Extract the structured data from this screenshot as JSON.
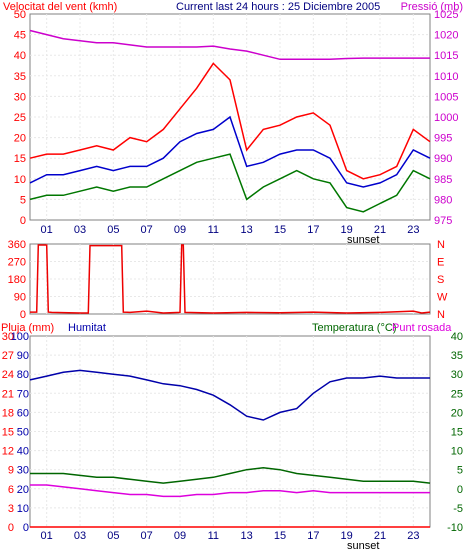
{
  "colors": {
    "wind_max": "#ff0000",
    "wind_mean": "#0000cc",
    "wind_min": "#007700",
    "pressure": "#cc00cc",
    "direction": "#ee0000",
    "humidity": "#0000aa",
    "temperature": "#006600",
    "dew_point": "#dd00dd",
    "rain": "#ff0000",
    "frame": "#808080",
    "grid": "#ffffff"
  },
  "chart_data": [
    {
      "type": "line",
      "title_left": "Velocitat del vent (kmh)",
      "title_center": "Current last 24 hours : 25 Diciembre 2005",
      "title_right": "Pressió (mb)",
      "x_ticks": [
        "01",
        "03",
        "05",
        "07",
        "09",
        "11",
        "13",
        "15",
        "17",
        "19",
        "21",
        "23"
      ],
      "x_annotation": "sunset",
      "y_left_ticks": [
        "0",
        "5",
        "10",
        "15",
        "20",
        "25",
        "30",
        "35",
        "40",
        "45",
        "50"
      ],
      "y_right_ticks": [
        "975",
        "980",
        "985",
        "990",
        "995",
        "1000",
        "1005",
        "1010",
        "1015",
        "1020",
        "1025"
      ],
      "y_left_range": [
        0,
        50
      ],
      "y_right_range": [
        975,
        1025
      ],
      "x_range": [
        0,
        24
      ],
      "series": [
        {
          "key": "pressure",
          "axis": "right",
          "x": [
            0,
            1,
            2,
            3,
            4,
            5,
            6,
            7,
            8,
            9,
            10,
            11,
            12,
            13,
            14,
            15,
            16,
            17,
            18,
            19,
            20,
            21,
            22,
            23,
            24
          ],
          "y": [
            1021,
            1020,
            1019,
            1018.5,
            1018,
            1018,
            1017.5,
            1017,
            1017,
            1017,
            1017,
            1017.2,
            1016.5,
            1016,
            1015,
            1014,
            1014,
            1014,
            1014,
            1014.2,
            1014.3,
            1014.3,
            1014.3,
            1014.3,
            1014.3
          ]
        },
        {
          "key": "wind_max",
          "axis": "left",
          "x": [
            0,
            1,
            2,
            3,
            4,
            5,
            6,
            7,
            8,
            9,
            10,
            11,
            12,
            13,
            14,
            15,
            16,
            17,
            18,
            19,
            20,
            21,
            22,
            23,
            24
          ],
          "y": [
            15,
            16,
            16,
            17,
            18,
            17,
            20,
            19,
            22,
            27,
            32,
            38,
            34,
            17,
            22,
            23,
            25,
            26,
            23,
            12,
            10,
            11,
            13,
            22,
            19
          ]
        },
        {
          "key": "wind_mean",
          "axis": "left",
          "x": [
            0,
            1,
            2,
            3,
            4,
            5,
            6,
            7,
            8,
            9,
            10,
            11,
            12,
            13,
            14,
            15,
            16,
            17,
            18,
            19,
            20,
            21,
            22,
            23,
            24
          ],
          "y": [
            9,
            11,
            11,
            12,
            13,
            12,
            13,
            13,
            15,
            19,
            21,
            22,
            25,
            13,
            14,
            16,
            17,
            17,
            15,
            9,
            8,
            9,
            11,
            17,
            15
          ]
        },
        {
          "key": "wind_min",
          "axis": "left",
          "x": [
            0,
            1,
            2,
            3,
            4,
            5,
            6,
            7,
            8,
            9,
            10,
            11,
            12,
            13,
            14,
            15,
            16,
            17,
            18,
            19,
            20,
            21,
            22,
            23,
            24
          ],
          "y": [
            5,
            6,
            6,
            7,
            8,
            7,
            8,
            8,
            10,
            12,
            14,
            15,
            16,
            5,
            8,
            10,
            12,
            10,
            9,
            3,
            2,
            4,
            6,
            12,
            10
          ]
        }
      ]
    },
    {
      "type": "line",
      "y_left_ticks": [
        "0",
        "90",
        "180",
        "270",
        "360"
      ],
      "y_right_labels": [
        "N",
        "W",
        "S",
        "E",
        "N"
      ],
      "y_range": [
        0,
        360
      ],
      "x_range": [
        0,
        24
      ],
      "series": [
        {
          "key": "direction",
          "x": [
            0,
            0.4,
            0.5,
            1.0,
            1.1,
            1.3,
            3,
            3.5,
            3.6,
            4.5,
            5.5,
            5.6,
            6,
            7,
            8,
            9,
            9.1,
            9.2,
            9.3,
            11,
            13,
            15,
            17,
            19,
            21,
            23,
            23.5,
            24
          ],
          "y": [
            10,
            10,
            355,
            355,
            10,
            8,
            5,
            5,
            352,
            352,
            352,
            10,
            8,
            15,
            5,
            8,
            355,
            355,
            8,
            5,
            8,
            6,
            10,
            5,
            8,
            15,
            5,
            10
          ]
        }
      ]
    },
    {
      "type": "line",
      "title_rain": "Pluja (mm)",
      "title_humidity": "Humitat",
      "title_temperature": "Temperatura (°C)",
      "title_dew": "Punt rosada",
      "x_ticks": [
        "01",
        "03",
        "05",
        "07",
        "09",
        "11",
        "13",
        "15",
        "17",
        "19",
        "21",
        "23"
      ],
      "x_annotation": "sunset",
      "y_left_ticks": [
        "0",
        "3",
        "6",
        "9",
        "12",
        "15",
        "18",
        "21",
        "24",
        "27",
        "30"
      ],
      "y_mid_ticks": [
        "0",
        "10",
        "20",
        "30",
        "40",
        "50",
        "60",
        "70",
        "80",
        "90",
        "100"
      ],
      "y_right_ticks": [
        "-10",
        "-5",
        "0",
        "5",
        "10",
        "15",
        "20",
        "25",
        "30",
        "35",
        "40"
      ],
      "y_left_range": [
        0,
        30
      ],
      "y_mid_range": [
        0,
        100
      ],
      "y_right_range": [
        -10,
        40
      ],
      "x_range": [
        0,
        24
      ],
      "series": [
        {
          "key": "humidity",
          "axis": "mid",
          "x": [
            0,
            1,
            2,
            3,
            4,
            5,
            6,
            7,
            8,
            9,
            10,
            11,
            12,
            13,
            14,
            15,
            16,
            17,
            18,
            19,
            20,
            21,
            22,
            23,
            24
          ],
          "y": [
            77,
            79,
            81,
            82,
            81,
            80,
            79,
            77,
            75,
            74,
            72,
            69,
            64,
            58,
            56,
            60,
            62,
            70,
            76,
            78,
            78,
            79,
            78,
            78,
            78
          ]
        },
        {
          "key": "temperature",
          "axis": "right",
          "x": [
            0,
            1,
            2,
            3,
            4,
            5,
            6,
            7,
            8,
            9,
            10,
            11,
            12,
            13,
            14,
            15,
            16,
            17,
            18,
            19,
            20,
            21,
            22,
            23,
            24
          ],
          "y": [
            4,
            4,
            4,
            3.5,
            3,
            3,
            2.5,
            2,
            1.5,
            2,
            2.5,
            3,
            4,
            5,
            5.5,
            5,
            4,
            3.5,
            3,
            2.5,
            2,
            2,
            2,
            2,
            1.5
          ]
        },
        {
          "key": "dew_point",
          "axis": "right",
          "x": [
            0,
            1,
            2,
            3,
            4,
            5,
            6,
            7,
            8,
            9,
            10,
            11,
            12,
            13,
            14,
            15,
            16,
            17,
            18,
            19,
            20,
            21,
            22,
            23,
            24
          ],
          "y": [
            1,
            1,
            0.5,
            0,
            -0.5,
            -1,
            -1.5,
            -1.5,
            -2,
            -2,
            -1.5,
            -1.5,
            -1,
            -1,
            -0.5,
            -0.5,
            -1,
            -0.5,
            -1,
            -1,
            -1,
            -1,
            -1,
            -1,
            -1
          ]
        },
        {
          "key": "rain",
          "axis": "left",
          "x": [
            0,
            24
          ],
          "y": [
            0,
            0
          ]
        }
      ]
    }
  ]
}
